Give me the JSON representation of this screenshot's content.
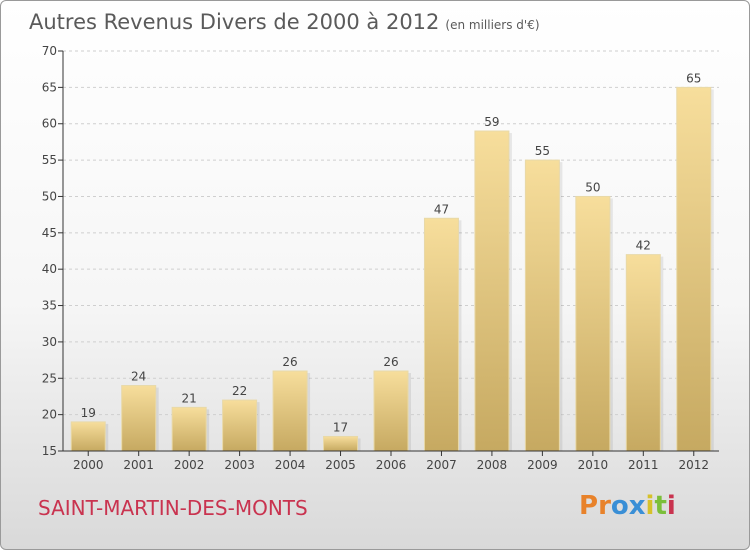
{
  "title": "Autres Revenus Divers de 2000 à 2012",
  "unit": "(en milliers d'€)",
  "commune": "SAINT-MARTIN-DES-MONTS",
  "logo": {
    "text": "Proxiti",
    "letters": [
      {
        "ch": "P",
        "color": "#e8822a"
      },
      {
        "ch": "r",
        "color": "#e8822a"
      },
      {
        "ch": "o",
        "color": "#3a8fd6"
      },
      {
        "ch": "x",
        "color": "#3a8fd6"
      },
      {
        "ch": "i",
        "color": "#d6c12a"
      },
      {
        "ch": "t",
        "color": "#7bbf3a"
      },
      {
        "ch": "i",
        "color": "#c9334f"
      }
    ]
  },
  "colors": {
    "bar_light": "#f6dc98",
    "bar_dark": "#c8ab63",
    "axis": "#333333",
    "grid": "#d8d8d8"
  },
  "chart_data": {
    "type": "bar",
    "categories": [
      "2000",
      "2001",
      "2002",
      "2003",
      "2004",
      "2005",
      "2006",
      "2007",
      "2008",
      "2009",
      "2010",
      "2011",
      "2012"
    ],
    "values": [
      19,
      24,
      21,
      22,
      26,
      17,
      26,
      47,
      59,
      55,
      50,
      42,
      65
    ],
    "ylim": [
      15,
      70
    ],
    "yticks": [
      15,
      20,
      25,
      30,
      35,
      40,
      45,
      50,
      55,
      60,
      65,
      70
    ],
    "grid": "horizontal-dashed",
    "legend": "none"
  }
}
